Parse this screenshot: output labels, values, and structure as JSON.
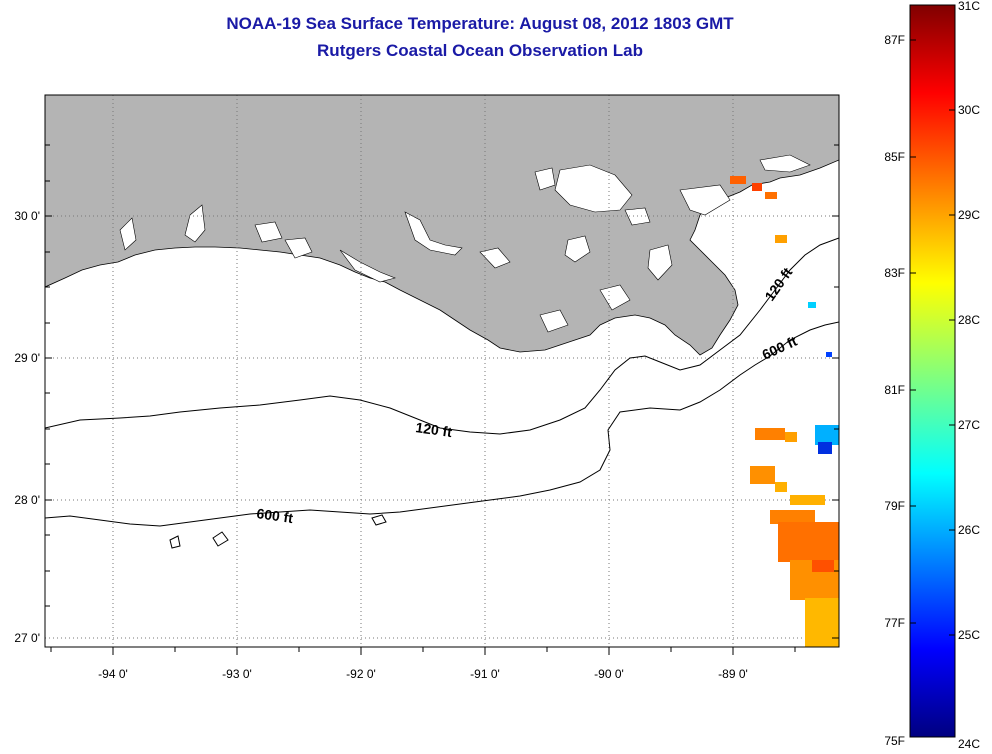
{
  "title_line1": "NOAA-19 Sea Surface Temperature:  August 08, 2012 1803 GMT",
  "title_line2": "Rutgers Coastal Ocean Observation Lab",
  "map": {
    "lon_ticks": [
      "-94 0'",
      "-93 0'",
      "-92 0'",
      "-91 0'",
      "-90 0'",
      "-89 0'"
    ],
    "lat_ticks": [
      "30 0'",
      "29 0'",
      "28 0'",
      "27 0'"
    ],
    "contour_labels": [
      {
        "text": "120 ft",
        "id": "c120a"
      },
      {
        "text": "120 ft",
        "id": "c120b"
      },
      {
        "text": "600 ft",
        "id": "c600a"
      },
      {
        "text": "600 ft",
        "id": "c600b"
      }
    ],
    "colors": {
      "land": "#b4b4b4",
      "ocean": "#ffffff",
      "title": "#1a1aa6"
    }
  },
  "colorbar": {
    "fahrenheit": [
      "87F",
      "85F",
      "83F",
      "81F",
      "79F",
      "77F",
      "75F"
    ],
    "celsius": [
      "31C",
      "30C",
      "29C",
      "28C",
      "27C",
      "26C",
      "25C",
      "24C"
    ],
    "range_c": [
      24,
      31
    ],
    "colormap": "jet"
  }
}
